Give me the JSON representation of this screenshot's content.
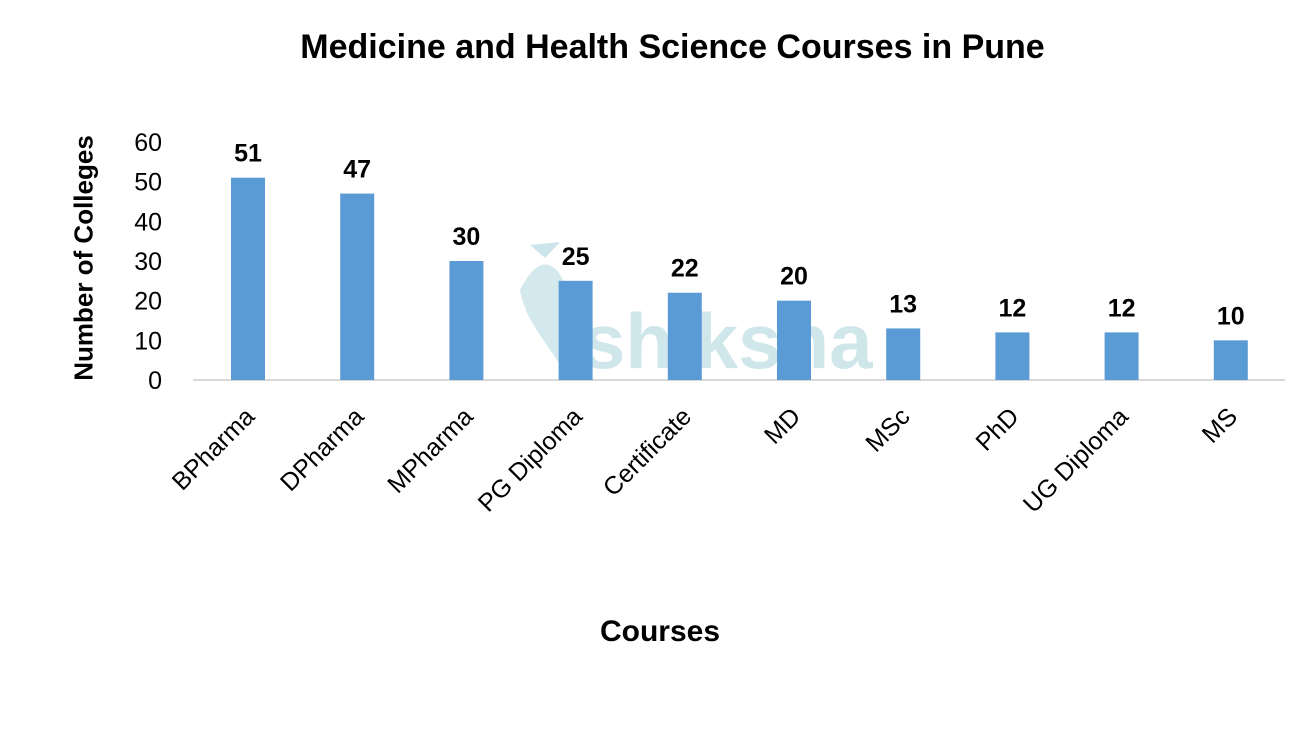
{
  "chart_data": {
    "type": "bar",
    "title": "Medicine and Health Science Courses in Pune",
    "xlabel": "Courses",
    "ylabel": "Number of Colleges",
    "categories": [
      "BPharma",
      "DPharma",
      "MPharma",
      "PG Diploma",
      "Certificate",
      "MD",
      "MSc",
      "PhD",
      "UG Diploma",
      "MS"
    ],
    "values": [
      51,
      47,
      30,
      25,
      22,
      20,
      13,
      12,
      12,
      10
    ],
    "ylim": [
      0,
      60
    ],
    "yticks": [
      0,
      10,
      20,
      30,
      40,
      50,
      60
    ],
    "grid": false,
    "legend": null,
    "data_labels": true,
    "bar_color": "#5b9bd5",
    "axis_color": "#d9d9d9",
    "watermark": "shiksha"
  }
}
